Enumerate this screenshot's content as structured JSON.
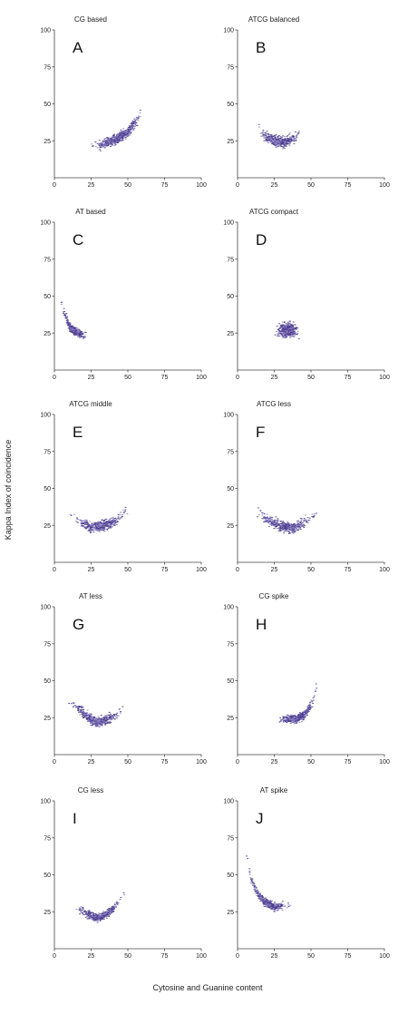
{
  "figure": {
    "ylabel": "Kappa Index of coincidence",
    "xlabel": "Cytosine and Guanine content"
  },
  "colors": {
    "points": "#4b3b8c",
    "points_light": "#8a7fc0",
    "axis": "#444444"
  },
  "chart_data": [
    {
      "id": "A",
      "type": "scatter",
      "title": "CG based",
      "letter": "A",
      "xlim": [
        0,
        100
      ],
      "ylim": [
        0,
        100
      ],
      "xticks": [
        "0",
        "25",
        "50",
        "75",
        "100"
      ],
      "yticks": [
        "25",
        "50",
        "75",
        "100"
      ],
      "trend": [
        [
          23,
          22
        ],
        [
          30,
          22
        ],
        [
          40,
          25
        ],
        [
          50,
          31
        ],
        [
          57,
          40
        ],
        [
          63,
          58
        ]
      ],
      "spread": 5,
      "density": 520
    },
    {
      "id": "B",
      "type": "scatter",
      "title": "ATCG balanced",
      "letter": "B",
      "xlim": [
        0,
        100
      ],
      "ylim": [
        0,
        100
      ],
      "xticks": [
        "0",
        "25",
        "50",
        "75",
        "100"
      ],
      "yticks": [
        "25",
        "50",
        "75",
        "100"
      ],
      "trend": [
        [
          12,
          36
        ],
        [
          18,
          29
        ],
        [
          25,
          25
        ],
        [
          32,
          24
        ],
        [
          40,
          28
        ],
        [
          45,
          36
        ]
      ],
      "spread": 5,
      "density": 420
    },
    {
      "id": "C",
      "type": "scatter",
      "title": "AT based",
      "letter": "C",
      "xlim": [
        0,
        100
      ],
      "ylim": [
        0,
        100
      ],
      "xticks": [
        "0",
        "25",
        "50",
        "75",
        "100"
      ],
      "yticks": [
        "25",
        "50",
        "75",
        "100"
      ],
      "trend": [
        [
          4,
          48
        ],
        [
          7,
          38
        ],
        [
          10,
          30
        ],
        [
          14,
          26
        ],
        [
          19,
          24
        ],
        [
          23,
          22
        ]
      ],
      "spread": 4,
      "density": 380
    },
    {
      "id": "D",
      "type": "scatter",
      "title": "ATCG compact",
      "letter": "D",
      "xlim": [
        0,
        100
      ],
      "ylim": [
        0,
        100
      ],
      "xticks": [
        "0",
        "25",
        "50",
        "75",
        "100"
      ],
      "yticks": [
        "25",
        "50",
        "75",
        "100"
      ],
      "trend": [
        [
          25,
          26
        ],
        [
          30,
          27
        ],
        [
          35,
          27
        ],
        [
          40,
          27
        ],
        [
          43,
          26
        ]
      ],
      "spread": 7,
      "density": 420
    },
    {
      "id": "E",
      "type": "scatter",
      "title": "ATCG middle",
      "letter": "E",
      "xlim": [
        0,
        100
      ],
      "ylim": [
        0,
        100
      ],
      "xticks": [
        "0",
        "25",
        "50",
        "75",
        "100"
      ],
      "yticks": [
        "25",
        "50",
        "75",
        "100"
      ],
      "trend": [
        [
          10,
          33
        ],
        [
          18,
          27
        ],
        [
          25,
          24
        ],
        [
          33,
          25
        ],
        [
          42,
          28
        ],
        [
          52,
          38
        ]
      ],
      "spread": 5,
      "density": 460
    },
    {
      "id": "F",
      "type": "scatter",
      "title": "ATCG less",
      "letter": "F",
      "xlim": [
        0,
        100
      ],
      "ylim": [
        0,
        100
      ],
      "xticks": [
        "0",
        "25",
        "50",
        "75",
        "100"
      ],
      "yticks": [
        "25",
        "50",
        "75",
        "100"
      ],
      "trend": [
        [
          8,
          40
        ],
        [
          15,
          33
        ],
        [
          22,
          28
        ],
        [
          30,
          24
        ],
        [
          40,
          23
        ],
        [
          50,
          30
        ],
        [
          58,
          42
        ]
      ],
      "spread": 5,
      "density": 460
    },
    {
      "id": "G",
      "type": "scatter",
      "title": "AT less",
      "letter": "G",
      "xlim": [
        0,
        100
      ],
      "ylim": [
        0,
        100
      ],
      "xticks": [
        "0",
        "25",
        "50",
        "75",
        "100"
      ],
      "yticks": [
        "25",
        "50",
        "75",
        "100"
      ],
      "trend": [
        [
          8,
          38
        ],
        [
          15,
          32
        ],
        [
          22,
          26
        ],
        [
          28,
          22
        ],
        [
          35,
          23
        ],
        [
          42,
          27
        ],
        [
          50,
          34
        ]
      ],
      "spread": 5,
      "density": 460
    },
    {
      "id": "H",
      "type": "scatter",
      "title": "CG spike",
      "letter": "H",
      "xlim": [
        0,
        100
      ],
      "ylim": [
        0,
        100
      ],
      "xticks": [
        "0",
        "25",
        "50",
        "75",
        "100"
      ],
      "yticks": [
        "25",
        "50",
        "75",
        "100"
      ],
      "trend": [
        [
          25,
          25
        ],
        [
          32,
          24
        ],
        [
          40,
          24
        ],
        [
          47,
          28
        ],
        [
          52,
          38
        ],
        [
          56,
          55
        ]
      ],
      "spread": 4,
      "density": 460
    },
    {
      "id": "I",
      "type": "scatter",
      "title": "CG less",
      "letter": "I",
      "xlim": [
        0,
        100
      ],
      "ylim": [
        0,
        100
      ],
      "xticks": [
        "0",
        "25",
        "50",
        "75",
        "100"
      ],
      "yticks": [
        "25",
        "50",
        "75",
        "100"
      ],
      "trend": [
        [
          12,
          30
        ],
        [
          18,
          26
        ],
        [
          25,
          22
        ],
        [
          31,
          21
        ],
        [
          38,
          25
        ],
        [
          44,
          32
        ],
        [
          50,
          42
        ]
      ],
      "spread": 4,
      "density": 440
    },
    {
      "id": "J",
      "type": "scatter",
      "title": "AT spike",
      "letter": "J",
      "xlim": [
        0,
        100
      ],
      "ylim": [
        0,
        100
      ],
      "xticks": [
        "0",
        "25",
        "50",
        "75",
        "100"
      ],
      "yticks": [
        "25",
        "50",
        "75",
        "100"
      ],
      "trend": [
        [
          3,
          85
        ],
        [
          6,
          65
        ],
        [
          9,
          48
        ],
        [
          13,
          38
        ],
        [
          18,
          32
        ],
        [
          25,
          28
        ],
        [
          32,
          29
        ],
        [
          38,
          33
        ]
      ],
      "spread": 4,
      "density": 420
    }
  ]
}
